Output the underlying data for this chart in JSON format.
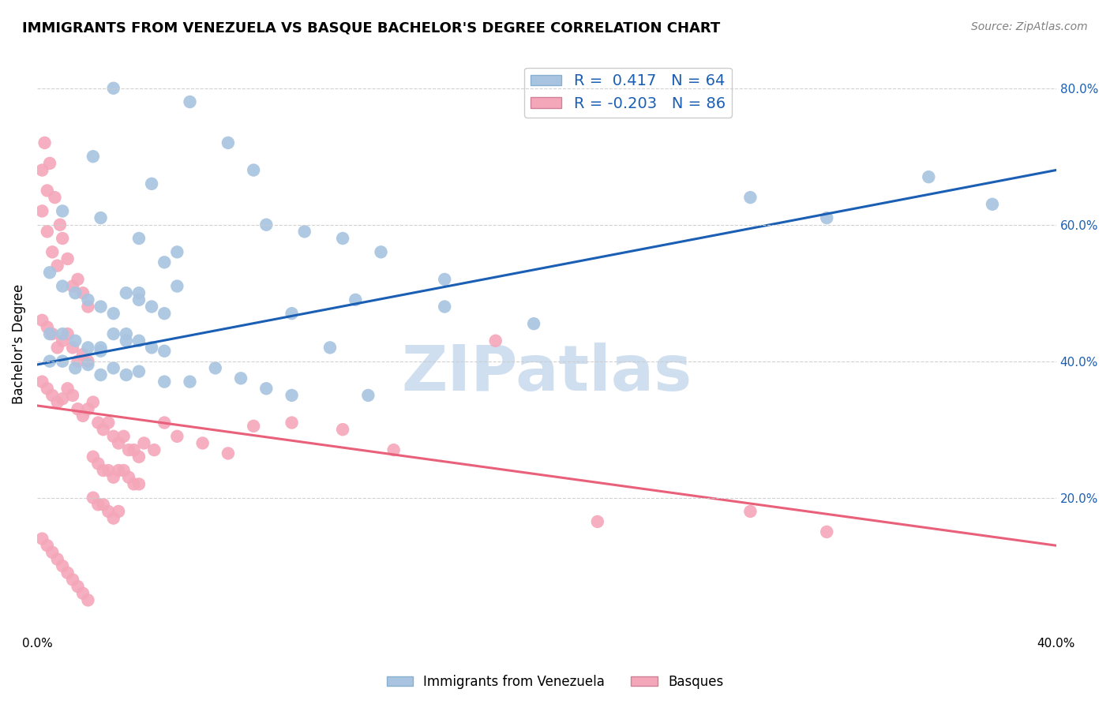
{
  "title": "IMMIGRANTS FROM VENEZUELA VS BASQUE BACHELOR'S DEGREE CORRELATION CHART",
  "source": "Source: ZipAtlas.com",
  "ylabel": "Bachelor's Degree",
  "xlim": [
    0.0,
    0.4
  ],
  "ylim": [
    0.0,
    0.85
  ],
  "xticks": [
    0.0,
    0.05,
    0.1,
    0.15,
    0.2,
    0.25,
    0.3,
    0.35,
    0.4
  ],
  "yticks_right": [
    0.2,
    0.4,
    0.6,
    0.8
  ],
  "ytick_right_labels": [
    "20.0%",
    "40.0%",
    "60.0%",
    "80.0%"
  ],
  "blue_R": 0.417,
  "blue_N": 64,
  "pink_R": -0.203,
  "pink_N": 86,
  "blue_color": "#a8c4e0",
  "pink_color": "#f4a7b9",
  "blue_line_color": "#1a5fb4",
  "pink_line_color": "#e8607a",
  "legend_text_color": "#1a5fb4",
  "watermark": "ZIPatlas",
  "watermark_color": "#d0dff0",
  "blue_scatter_x": [
    0.03,
    0.06,
    0.022,
    0.045,
    0.075,
    0.085,
    0.01,
    0.025,
    0.04,
    0.055,
    0.09,
    0.105,
    0.12,
    0.135,
    0.005,
    0.01,
    0.015,
    0.02,
    0.025,
    0.03,
    0.035,
    0.04,
    0.045,
    0.05,
    0.005,
    0.01,
    0.015,
    0.02,
    0.025,
    0.03,
    0.035,
    0.04,
    0.045,
    0.05,
    0.005,
    0.01,
    0.015,
    0.02,
    0.025,
    0.03,
    0.035,
    0.04,
    0.05,
    0.06,
    0.07,
    0.08,
    0.09,
    0.1,
    0.115,
    0.13,
    0.16,
    0.195,
    0.28,
    0.31,
    0.35,
    0.375,
    0.16,
    0.125,
    0.05,
    0.04,
    0.055,
    0.1,
    0.025,
    0.035
  ],
  "blue_scatter_y": [
    0.8,
    0.78,
    0.7,
    0.66,
    0.72,
    0.68,
    0.62,
    0.61,
    0.58,
    0.56,
    0.6,
    0.59,
    0.58,
    0.56,
    0.53,
    0.51,
    0.5,
    0.49,
    0.48,
    0.47,
    0.5,
    0.49,
    0.48,
    0.47,
    0.44,
    0.44,
    0.43,
    0.42,
    0.42,
    0.44,
    0.44,
    0.43,
    0.42,
    0.415,
    0.4,
    0.4,
    0.39,
    0.395,
    0.38,
    0.39,
    0.38,
    0.385,
    0.37,
    0.37,
    0.39,
    0.375,
    0.36,
    0.35,
    0.42,
    0.35,
    0.48,
    0.455,
    0.64,
    0.61,
    0.67,
    0.63,
    0.52,
    0.49,
    0.545,
    0.5,
    0.51,
    0.47,
    0.415,
    0.43
  ],
  "pink_scatter_x": [
    0.002,
    0.004,
    0.006,
    0.008,
    0.01,
    0.012,
    0.014,
    0.016,
    0.018,
    0.02,
    0.002,
    0.004,
    0.006,
    0.008,
    0.01,
    0.012,
    0.014,
    0.016,
    0.018,
    0.02,
    0.002,
    0.004,
    0.006,
    0.008,
    0.01,
    0.012,
    0.014,
    0.016,
    0.018,
    0.02,
    0.022,
    0.024,
    0.026,
    0.028,
    0.03,
    0.032,
    0.034,
    0.036,
    0.038,
    0.04,
    0.022,
    0.024,
    0.026,
    0.028,
    0.03,
    0.032,
    0.034,
    0.036,
    0.038,
    0.04,
    0.022,
    0.024,
    0.026,
    0.028,
    0.03,
    0.032,
    0.042,
    0.046,
    0.05,
    0.055,
    0.065,
    0.075,
    0.085,
    0.1,
    0.12,
    0.14,
    0.18,
    0.22,
    0.28,
    0.31,
    0.002,
    0.004,
    0.006,
    0.008,
    0.01,
    0.012,
    0.014,
    0.016,
    0.018,
    0.02,
    0.002,
    0.004,
    0.003,
    0.005,
    0.007,
    0.009
  ],
  "pink_scatter_y": [
    0.62,
    0.59,
    0.56,
    0.54,
    0.58,
    0.55,
    0.51,
    0.52,
    0.5,
    0.48,
    0.46,
    0.45,
    0.44,
    0.42,
    0.43,
    0.44,
    0.42,
    0.4,
    0.41,
    0.4,
    0.37,
    0.36,
    0.35,
    0.34,
    0.345,
    0.36,
    0.35,
    0.33,
    0.32,
    0.33,
    0.34,
    0.31,
    0.3,
    0.31,
    0.29,
    0.28,
    0.29,
    0.27,
    0.27,
    0.26,
    0.26,
    0.25,
    0.24,
    0.24,
    0.23,
    0.24,
    0.24,
    0.23,
    0.22,
    0.22,
    0.2,
    0.19,
    0.19,
    0.18,
    0.17,
    0.18,
    0.28,
    0.27,
    0.31,
    0.29,
    0.28,
    0.265,
    0.305,
    0.31,
    0.3,
    0.27,
    0.43,
    0.165,
    0.18,
    0.15,
    0.14,
    0.13,
    0.12,
    0.11,
    0.1,
    0.09,
    0.08,
    0.07,
    0.06,
    0.05,
    0.68,
    0.65,
    0.72,
    0.69,
    0.64,
    0.6
  ],
  "blue_trend_x": [
    0.0,
    0.4
  ],
  "blue_trend_y": [
    0.395,
    0.68
  ],
  "pink_trend_x": [
    0.0,
    0.4
  ],
  "pink_trend_y": [
    0.335,
    0.13
  ],
  "grid_color": "#cccccc",
  "background_color": "#ffffff",
  "title_fontsize": 13,
  "right_axis_color": "#1a5fb4"
}
